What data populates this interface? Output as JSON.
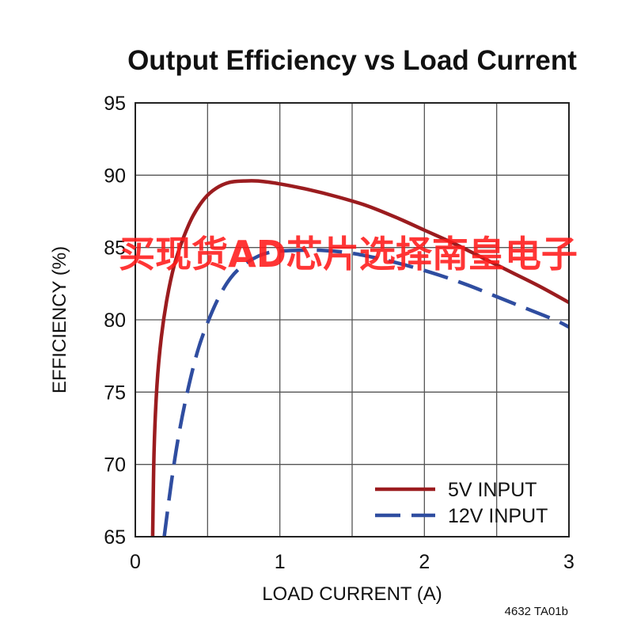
{
  "chart_data": {
    "type": "line",
    "title": "Output Efficiency vs Load Current",
    "xlabel": "LOAD CURRENT (A)",
    "ylabel": "EFFICIENCY (%)",
    "xlim": [
      0,
      3
    ],
    "ylim": [
      65,
      95
    ],
    "xticks": [
      0,
      1,
      2,
      3
    ],
    "yticks": [
      65,
      70,
      75,
      80,
      85,
      90,
      95
    ],
    "grid": true,
    "legend_position": "bottom-right",
    "series": [
      {
        "name": "5V INPUT",
        "color": "#9b1c1f",
        "style": "solid",
        "x": [
          0.12,
          0.13,
          0.15,
          0.18,
          0.22,
          0.27,
          0.33,
          0.4,
          0.48,
          0.56,
          0.65,
          0.75,
          0.85,
          1.0,
          1.2,
          1.4,
          1.6,
          1.8,
          2.0,
          2.2,
          2.4,
          2.6,
          2.8,
          3.0
        ],
        "y": [
          65.0,
          71.0,
          75.5,
          78.8,
          81.5,
          83.8,
          85.6,
          87.2,
          88.4,
          89.1,
          89.5,
          89.6,
          89.6,
          89.4,
          89.0,
          88.5,
          87.9,
          87.1,
          86.2,
          85.3,
          84.3,
          83.3,
          82.3,
          81.2
        ]
      },
      {
        "name": "12V INPUT",
        "color": "#2f4da0",
        "style": "dashed",
        "x": [
          0.2,
          0.25,
          0.3,
          0.36,
          0.43,
          0.5,
          0.58,
          0.66,
          0.75,
          0.85,
          0.95,
          1.1,
          1.3,
          1.5,
          1.7,
          1.9,
          2.1,
          2.3,
          2.5,
          2.7,
          2.9,
          3.0
        ],
        "y": [
          65.0,
          68.8,
          72.0,
          75.0,
          77.8,
          79.8,
          81.6,
          82.9,
          83.8,
          84.4,
          84.7,
          84.8,
          84.8,
          84.6,
          84.2,
          83.7,
          83.1,
          82.4,
          81.6,
          80.8,
          80.0,
          79.5
        ]
      }
    ],
    "footnote": "4632 TA01b"
  },
  "watermark": {
    "text": "买现货AD芯片选择南皇电子",
    "color": "#ff1a1a"
  }
}
